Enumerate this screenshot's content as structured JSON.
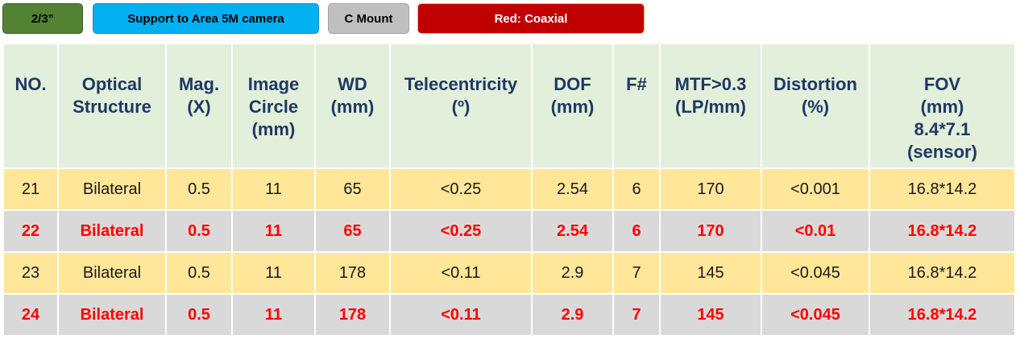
{
  "tags": [
    {
      "label": "2/3”"
    },
    {
      "label": "Support to Area 5M camera"
    },
    {
      "label": "C Mount"
    },
    {
      "label": "Red: Coaxial"
    }
  ],
  "colors": {
    "tag_green": "#548235",
    "tag_blue": "#00b0f0",
    "tag_gray": "#bfbfbf",
    "tag_red": "#c00000",
    "header_bg": "#e2efda",
    "header_text": "#1f3864",
    "row_yellow": "#ffe699",
    "row_gray": "#d9d9d9",
    "red_text": "#ff0000"
  },
  "table": {
    "headers": [
      [
        "NO."
      ],
      [
        "Optical",
        "Structure"
      ],
      [
        "Mag.",
        "(X)"
      ],
      [
        "Image",
        "Circle",
        "(mm)"
      ],
      [
        "WD",
        "(mm)"
      ],
      [
        "Telecentricity",
        "(º)"
      ],
      [
        "DOF",
        "(mm)"
      ],
      [
        "F#"
      ],
      [
        "MTF>0.3",
        "(LP/mm)"
      ],
      [
        "Distortion",
        "(%)"
      ],
      [
        "FOV",
        "(mm)",
        "8.4*7.1",
        "(sensor)"
      ]
    ],
    "rows": [
      {
        "style": "normal",
        "cells": [
          "21",
          "Bilateral",
          "0.5",
          "11",
          "65",
          "<0.25",
          "2.54",
          "6",
          "170",
          "<0.001",
          "16.8*14.2"
        ]
      },
      {
        "style": "red",
        "cells": [
          "22",
          "Bilateral",
          "0.5",
          "11",
          "65",
          "<0.25",
          "2.54",
          "6",
          "170",
          "<0.01",
          "16.8*14.2"
        ]
      },
      {
        "style": "normal",
        "cells": [
          "23",
          "Bilateral",
          "0.5",
          "11",
          "178",
          "<0.11",
          "2.9",
          "7",
          "145",
          "<0.045",
          "16.8*14.2"
        ]
      },
      {
        "style": "red",
        "cells": [
          "24",
          "Bilateral",
          "0.5",
          "11",
          "178",
          "<0.11",
          "2.9",
          "7",
          "145",
          "<0.045",
          "16.8*14.2"
        ]
      }
    ]
  }
}
